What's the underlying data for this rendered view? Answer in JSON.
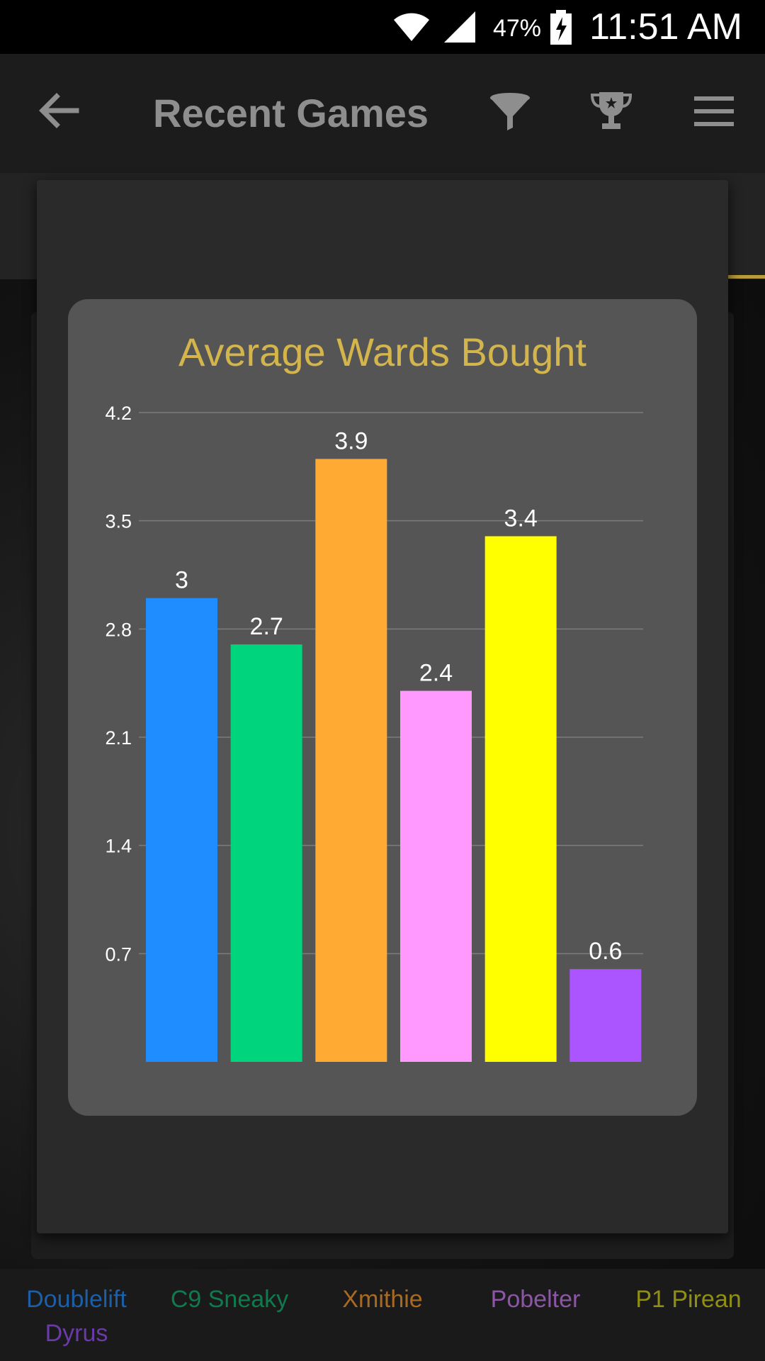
{
  "status_bar": {
    "time": "11:51 AM",
    "battery_percent": "47%",
    "icons": [
      "wifi-icon",
      "signal-icon",
      "battery-charging-icon"
    ]
  },
  "app_bar": {
    "title": "Recent Games",
    "icons": [
      "back-arrow-icon",
      "filter-funnel-icon",
      "trophy-icon",
      "hamburger-menu-icon"
    ]
  },
  "chart_data": {
    "type": "bar",
    "title": "Average Wards Bought",
    "categories": [
      "Doublelift",
      "C9 Sneaky",
      "Xmithie",
      "Pobelter",
      "P1 Pirean",
      "Dyrus"
    ],
    "values": [
      3,
      2.7,
      3.9,
      2.4,
      3.4,
      0.6
    ],
    "value_labels": [
      "3",
      "2.7",
      "3.9",
      "2.4",
      "3.4",
      "0.6"
    ],
    "colors": [
      "#1f8cff",
      "#00d47d",
      "#ffaa33",
      "#ff99ff",
      "#ffff00",
      "#aa55ff"
    ],
    "ylim": [
      0,
      4.2
    ],
    "yticks": [
      0.7,
      1.4,
      2.1,
      2.8,
      3.5,
      4.2
    ],
    "ytick_labels": [
      "0.7",
      "1.4",
      "2.1",
      "2.8",
      "3.5",
      "4.2"
    ],
    "xlabel": "",
    "ylabel": "",
    "grid": true,
    "legend_position": "bottom"
  },
  "legend": {
    "items": [
      {
        "label": "Doublelift",
        "color": "#1a5fa8"
      },
      {
        "label": "C9 Sneaky",
        "color": "#0f7a4e"
      },
      {
        "label": "Xmithie",
        "color": "#a86a22"
      },
      {
        "label": "Pobelter",
        "color": "#8c56a6"
      },
      {
        "label": "P1 Pirean",
        "color": "#8f8f14"
      },
      {
        "label": "Dyrus",
        "color": "#6a3aa8"
      }
    ]
  }
}
